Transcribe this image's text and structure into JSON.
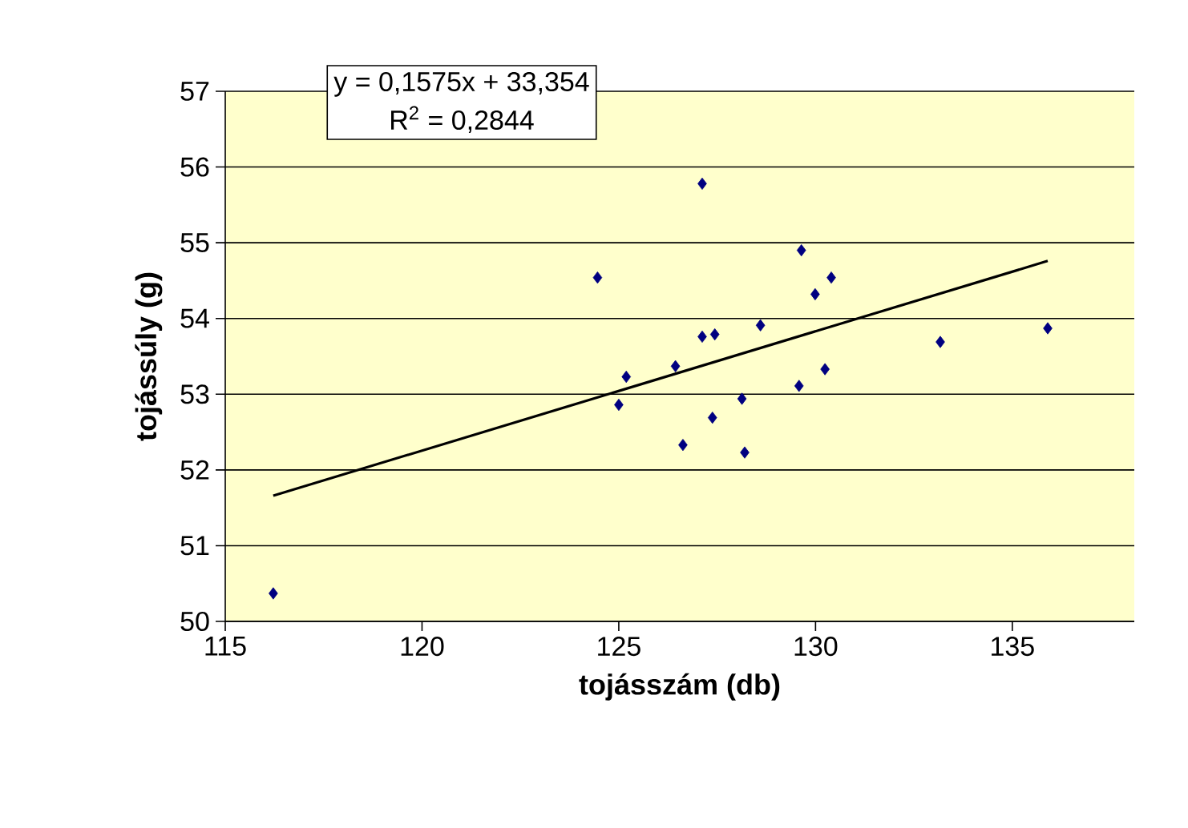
{
  "chart_data": {
    "type": "scatter",
    "xlabel": "tojásszám (db)",
    "ylabel": "tojássúly (g)",
    "annotations": [
      "y = 0,1575x + 33,354",
      "R$^{2}$ = 0,2844"
    ],
    "xlim": [
      115,
      138.1
    ],
    "ylim": [
      50,
      57
    ],
    "xticks": [
      115,
      120,
      125,
      130,
      135
    ],
    "yticks": [
      50,
      51,
      52,
      53,
      54,
      55,
      56,
      57
    ],
    "grid": "y",
    "series": [
      {
        "marker": "diamond",
        "color": "#000080",
        "x": [
          116.22,
          124.46,
          125.0,
          125.19,
          126.44,
          126.63,
          127.12,
          127.12,
          127.44,
          127.38,
          128.13,
          128.2,
          128.6,
          129.58,
          129.64,
          129.99,
          130.24,
          130.4,
          133.17,
          135.9
        ],
        "values": [
          50.37,
          54.54,
          52.86,
          53.23,
          53.37,
          52.33,
          55.78,
          53.76,
          53.79,
          52.69,
          52.94,
          52.23,
          53.91,
          53.11,
          54.9,
          54.32,
          53.33,
          54.54,
          53.69,
          53.87
        ]
      },
      {
        "type": "line",
        "marker": "none",
        "color": "#000000",
        "x": [
          116.22,
          135.9
        ],
        "values": [
          51.66,
          54.76
        ]
      }
    ]
  }
}
